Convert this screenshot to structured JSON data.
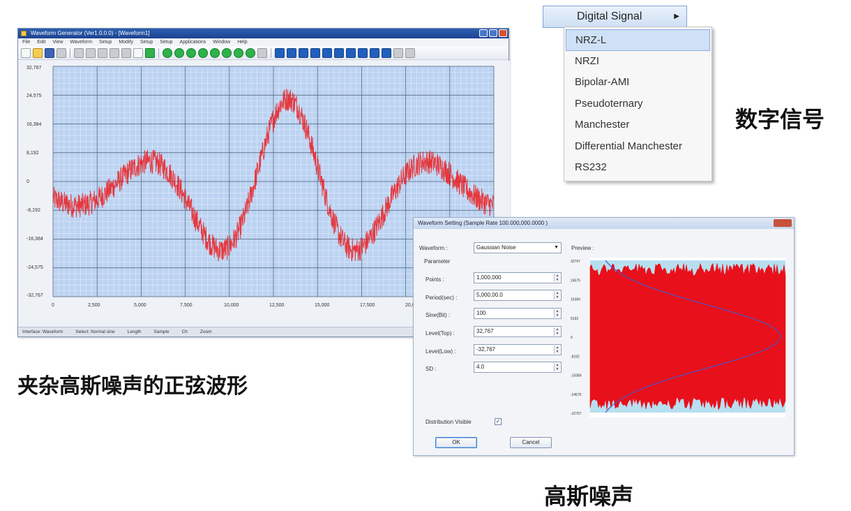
{
  "app": {
    "title": "Waveform Generator (Ver1.0.0.0) - [Waveform1]",
    "menu": [
      "File",
      "Edit",
      "View",
      "Waveform",
      "Setup",
      "Modify",
      "Setup",
      "Setup",
      "Applications",
      "Window",
      "Help"
    ],
    "status": [
      "Interface: Waveform",
      "Select: Normal sine",
      "Length",
      "Sample",
      "Ch",
      "Zoom"
    ],
    "plot": {
      "y_ticks": [
        "32,767",
        "24,575",
        "16,384",
        "8,192",
        "0",
        "-8,192",
        "-16,384",
        "-24,575",
        "-32,767"
      ],
      "x_ticks": [
        "0",
        "2,500",
        "5,000",
        "7,500",
        "10,000",
        "12,500",
        "15,000",
        "17,500",
        "20,000"
      ]
    }
  },
  "chart_data": {
    "type": "line",
    "ylim": [
      -32767,
      32767
    ],
    "xlim": [
      0,
      24000
    ],
    "series_color": "#ee1111",
    "signal": "sine with gaussian noise",
    "y_ticks": [
      32767,
      24575,
      16384,
      8192,
      0,
      -8192,
      -16384,
      -24575,
      -32767
    ],
    "x_ticks": [
      0,
      2500,
      5000,
      7500,
      10000,
      12500,
      15000,
      17500,
      20000
    ]
  },
  "menu": {
    "parent_label": "Digital Signal",
    "items": [
      {
        "label": "NRZ-L",
        "active": true
      },
      {
        "label": "NRZI"
      },
      {
        "label": "Bipolar-AMI"
      },
      {
        "label": "Pseudoternary"
      },
      {
        "label": "Manchester"
      },
      {
        "label": "Differential Manchester"
      },
      {
        "label": "RS232"
      }
    ]
  },
  "captions": {
    "digital_signal": "数字信号",
    "noisy_sine": "夹杂高斯噪声的正弦波形",
    "gaussian_noise": "高斯噪声"
  },
  "dialog": {
    "title": "Waveform Setting (Sample Rate 100.000,000.0000 )",
    "waveform_label": "Waveform :",
    "waveform_value": "Gaussian Noise",
    "group_label": "Parameter",
    "preview_label": "Preview :",
    "fields": [
      {
        "label": "Points :",
        "value": "1,000,000"
      },
      {
        "label": "Period(sec) :",
        "value": "5,000,00.0"
      },
      {
        "label": "Sine(Bit) :",
        "value": "100"
      },
      {
        "label": "Level(Top) :",
        "value": "32,767"
      },
      {
        "label": "Level(Low) :",
        "value": "-32,767"
      },
      {
        "label": "SD :",
        "value": "4.0"
      }
    ],
    "distribution_label": "Distribution Visible",
    "distribution_checked": "✓",
    "ok_label": "OK",
    "cancel_label": "Cancel",
    "preview_y_ticks": [
      "32767",
      "24575",
      "16384",
      "8192",
      "0",
      "-8192",
      "-16384",
      "-24575",
      "-32767"
    ]
  }
}
